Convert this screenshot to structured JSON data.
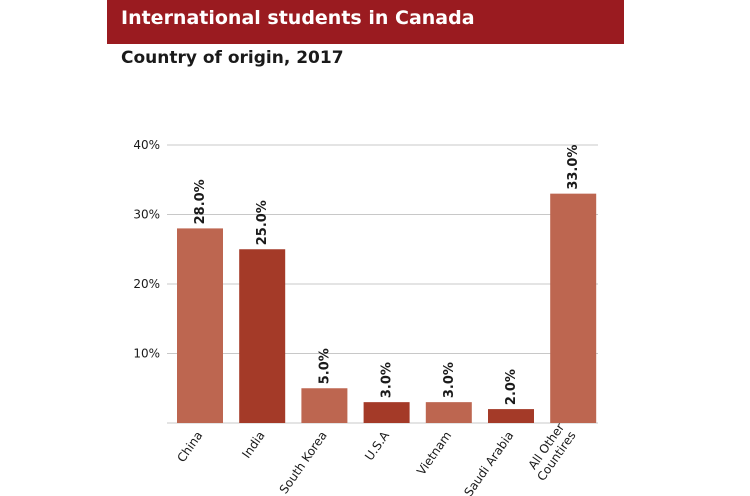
{
  "title": "International students in Canada",
  "subtitle": "Country of origin, 2017",
  "colors": {
    "banner": "#9a1b20",
    "bar_light": "#bd6650",
    "bar_dark": "#a43a28",
    "grid": "#c8c8c8",
    "text": "#1a1a1a"
  },
  "chart_data": {
    "type": "bar",
    "categories": [
      "China",
      "India",
      "South Korea",
      "U.S.A",
      "Vietnam",
      "Saudi Arabia",
      "All Other Countires"
    ],
    "category_labels": [
      [
        "China"
      ],
      [
        "India"
      ],
      [
        "South Korea"
      ],
      [
        "U.S.A"
      ],
      [
        "Vietnam"
      ],
      [
        "Saudi Arabia"
      ],
      [
        "All Other",
        "Countires"
      ]
    ],
    "values": [
      28.0,
      25.0,
      5.0,
      3.0,
      3.0,
      2.0,
      33.0
    ],
    "data_labels": [
      "28.0%",
      "25.0%",
      "5.0%",
      "3.0%",
      "3.0%",
      "2.0%",
      "33.0%"
    ],
    "yticks": [
      10,
      20,
      30,
      40
    ],
    "ytick_labels": [
      "10%",
      "20%",
      "30%",
      "40%"
    ],
    "ylim": [
      0,
      40
    ],
    "grid": true,
    "title": "International students in Canada",
    "subtitle": "Country of origin, 2017",
    "xlabel": "",
    "ylabel": ""
  }
}
